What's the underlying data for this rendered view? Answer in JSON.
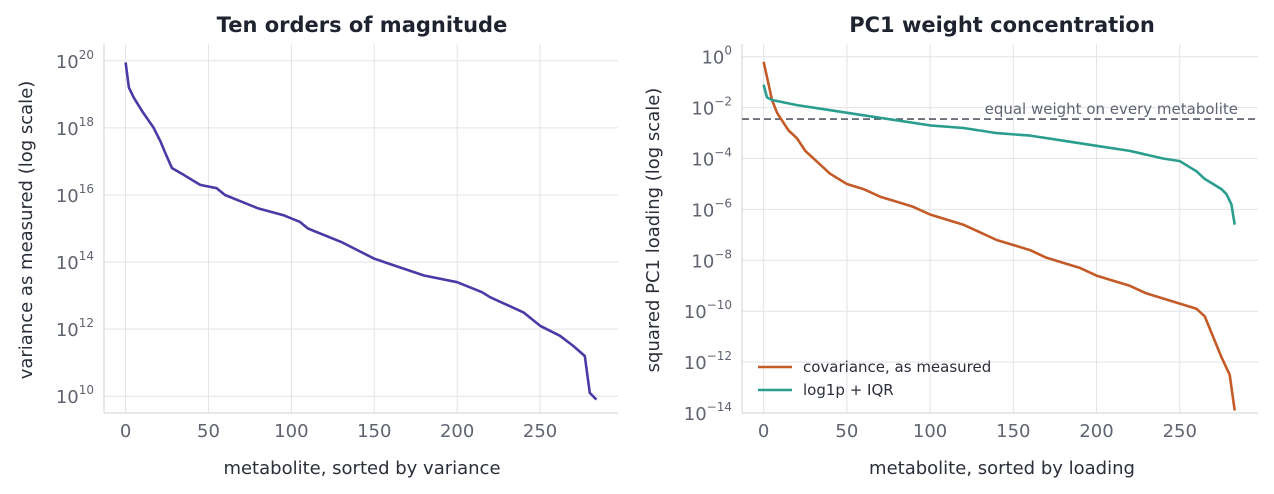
{
  "chart_data": [
    {
      "type": "line",
      "title": "Ten orders of magnitude",
      "xlabel": "metabolite, sorted by variance",
      "ylabel": "variance as measured (log scale)",
      "yscale": "log",
      "xlim": [
        -13,
        297
      ],
      "ylim_exp": [
        9.5,
        20.5
      ],
      "xticks": [
        0,
        50,
        100,
        150,
        200,
        250
      ],
      "yticks": [
        {
          "base": "10",
          "exp": "20",
          "v": 20
        },
        {
          "base": "10",
          "exp": "18",
          "v": 18
        },
        {
          "base": "10",
          "exp": "16",
          "v": 16
        },
        {
          "base": "10",
          "exp": "14",
          "v": 14
        },
        {
          "base": "10",
          "exp": "12",
          "v": 12
        },
        {
          "base": "10",
          "exp": "10",
          "v": 10
        }
      ],
      "grid": true,
      "series": [
        {
          "color": "#4b3aa6",
          "x": [
            0,
            2,
            5,
            10,
            17,
            21,
            24,
            28,
            35,
            45,
            55,
            60,
            70,
            80,
            95,
            105,
            110,
            130,
            150,
            165,
            180,
            200,
            215,
            220,
            240,
            250,
            262,
            270,
            277,
            280,
            284
          ],
          "y_log10": [
            19.95,
            19.2,
            18.9,
            18.5,
            18.0,
            17.6,
            17.25,
            16.8,
            16.6,
            16.3,
            16.2,
            16.0,
            15.8,
            15.6,
            15.4,
            15.2,
            15.0,
            14.6,
            14.1,
            13.85,
            13.6,
            13.4,
            13.1,
            12.95,
            12.5,
            12.1,
            11.8,
            11.5,
            11.2,
            10.1,
            9.9
          ]
        }
      ]
    },
    {
      "type": "line",
      "title": "PC1 weight concentration",
      "xlabel": "metabolite, sorted by loading",
      "ylabel": "squared PC1 loading (log scale)",
      "yscale": "log",
      "xlim": [
        -13,
        297
      ],
      "ylim_exp": [
        -14,
        0.5
      ],
      "xticks": [
        0,
        50,
        100,
        150,
        200,
        250
      ],
      "yticks": [
        {
          "base": "10",
          "exp": "0",
          "v": 0
        },
        {
          "base": "10",
          "exp": "−2",
          "v": -2
        },
        {
          "base": "10",
          "exp": "−4",
          "v": -4
        },
        {
          "base": "10",
          "exp": "−6",
          "v": -6
        },
        {
          "base": "10",
          "exp": "−8",
          "v": -8
        },
        {
          "base": "10",
          "exp": "−10",
          "v": -10
        },
        {
          "base": "10",
          "exp": "−12",
          "v": -12
        },
        {
          "base": "10",
          "exp": "−14",
          "v": -14
        }
      ],
      "grid": true,
      "legend": {
        "placement": "lower-left"
      },
      "reference_line": {
        "y_log10": -2.45,
        "label": "equal weight on every metabolite",
        "color": "#555a66"
      },
      "series": [
        {
          "name": "covariance, as measured",
          "color": "#c45a27",
          "x": [
            0,
            2,
            5,
            8,
            12,
            15,
            20,
            25,
            30,
            35,
            40,
            50,
            60,
            70,
            80,
            90,
            100,
            110,
            120,
            130,
            140,
            150,
            160,
            170,
            180,
            190,
            200,
            210,
            220,
            230,
            240,
            250,
            260,
            265,
            270,
            275,
            280,
            283
          ],
          "y_log10": [
            -0.2,
            -0.8,
            -1.7,
            -2.2,
            -2.6,
            -2.9,
            -3.2,
            -3.7,
            -4.0,
            -4.3,
            -4.6,
            -5.0,
            -5.2,
            -5.5,
            -5.7,
            -5.9,
            -6.2,
            -6.4,
            -6.6,
            -6.9,
            -7.2,
            -7.4,
            -7.6,
            -7.9,
            -8.1,
            -8.3,
            -8.6,
            -8.8,
            -9.0,
            -9.3,
            -9.5,
            -9.7,
            -9.9,
            -10.2,
            -11.0,
            -11.8,
            -12.5,
            -13.9
          ]
        },
        {
          "name": "log1p + IQR",
          "color": "#2a9d8f",
          "x": [
            0,
            2,
            5,
            20,
            40,
            60,
            80,
            100,
            120,
            140,
            160,
            180,
            200,
            220,
            240,
            250,
            255,
            260,
            265,
            270,
            275,
            278,
            281,
            283
          ],
          "y_log10": [
            -1.1,
            -1.6,
            -1.7,
            -1.9,
            -2.1,
            -2.3,
            -2.5,
            -2.7,
            -2.8,
            -3.0,
            -3.1,
            -3.3,
            -3.5,
            -3.7,
            -4.0,
            -4.1,
            -4.3,
            -4.5,
            -4.8,
            -5.0,
            -5.2,
            -5.4,
            -5.8,
            -6.6
          ]
        }
      ]
    }
  ]
}
